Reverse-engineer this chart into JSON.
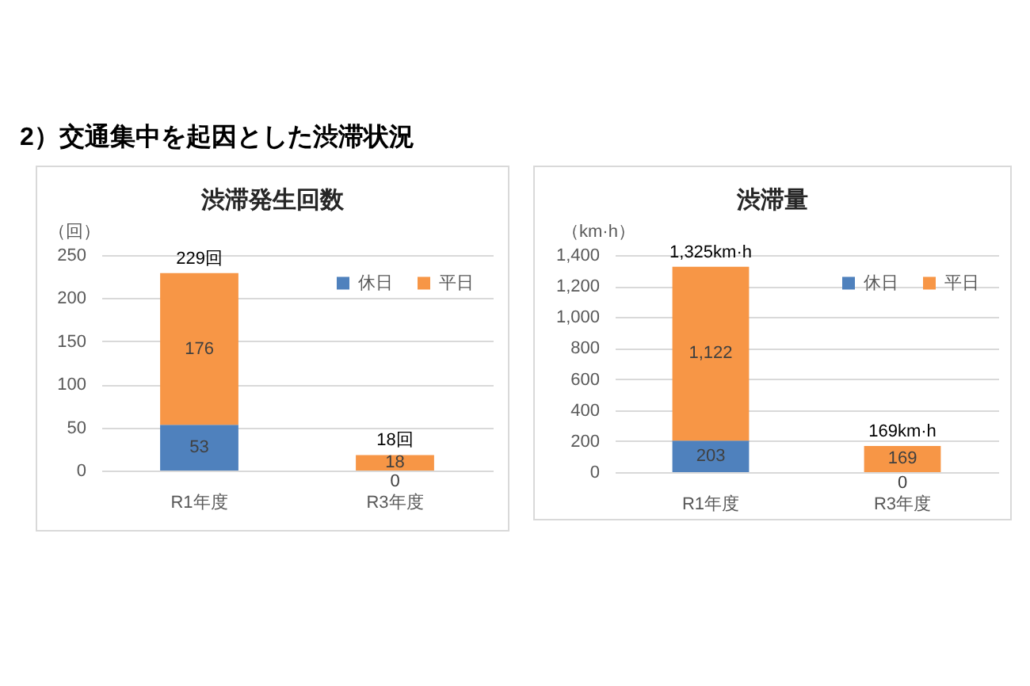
{
  "chart_data": [
    {
      "type": "bar",
      "title": "渋滞発生回数",
      "ylabel": "（回）",
      "annotations": [
        "2）交通集中を起因とした渋滞状況"
      ],
      "categories": [
        "R1年度",
        "R3年度"
      ],
      "stacked": true,
      "series": [
        {
          "name": "休日",
          "color": "#4f81bd",
          "values": [
            53,
            0
          ]
        },
        {
          "name": "平日",
          "color": "#f79646",
          "values": [
            176,
            18
          ]
        }
      ],
      "ylim": [
        0,
        250
      ],
      "yticks": [
        0,
        50,
        100,
        150,
        200,
        250
      ],
      "grid": "y",
      "legend": "top right",
      "data_labels": true,
      "totals": [
        "229回",
        "18回"
      ]
    },
    {
      "type": "bar",
      "title": "渋滞量",
      "ylabel": "（km·h）",
      "categories": [
        "R1年度",
        "R3年度"
      ],
      "stacked": true,
      "series": [
        {
          "name": "休日",
          "color": "#4f81bd",
          "values": [
            203,
            0
          ],
          "value_labels": [
            "203",
            "0"
          ]
        },
        {
          "name": "平日",
          "color": "#f79646",
          "values": [
            1122,
            169
          ],
          "value_labels": [
            "1,122",
            "169"
          ]
        }
      ],
      "ylim": [
        0,
        1400
      ],
      "yticks": [
        0,
        {
          "value": 200,
          "label": "200"
        },
        {
          "value": 400,
          "label": "400"
        },
        {
          "value": 600,
          "label": "600"
        },
        {
          "value": 800,
          "label": "800"
        },
        {
          "value": 1000,
          "label": "1,000"
        },
        {
          "value": 1200,
          "label": "1,200"
        },
        {
          "value": 1400,
          "label": "1,400"
        }
      ],
      "grid": "y",
      "legend": "top right",
      "totals": [
        "1,325km·h",
        "169km·h"
      ]
    }
  ]
}
